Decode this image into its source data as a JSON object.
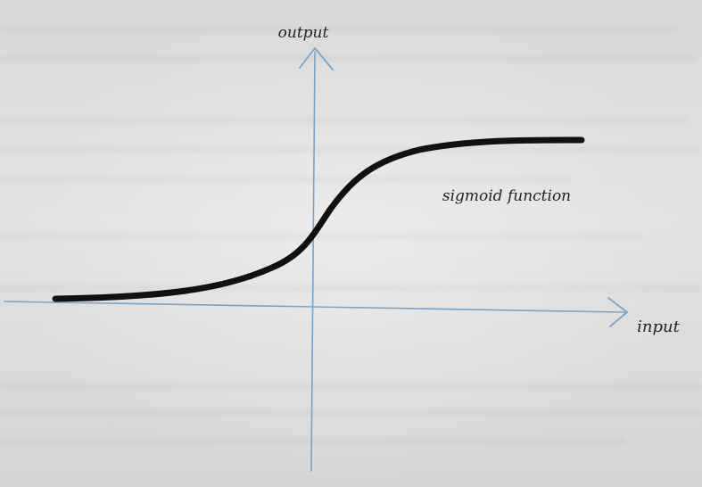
{
  "diagram": {
    "y_axis_label": "output",
    "x_axis_label": "input",
    "curve_label": "sigmoid function",
    "axis_color": "#7aa3c8",
    "curve_color": "#111111",
    "label_color": "#222222"
  }
}
